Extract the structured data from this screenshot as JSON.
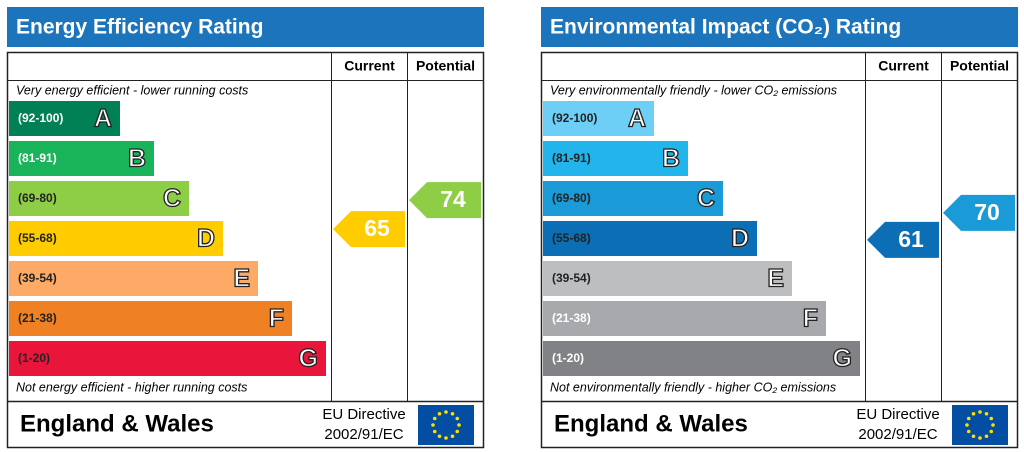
{
  "chart_data": [
    {
      "type": "epc",
      "title": "Energy Efficiency Rating",
      "columns": [
        "Current",
        "Potential"
      ],
      "top_note": "Very energy efficient - lower running costs",
      "bottom_note": "Not energy efficient - higher running costs",
      "bands": [
        {
          "range": "(92-100)",
          "letter": "A",
          "color": "#008054",
          "label_color": "#ffffff"
        },
        {
          "range": "(81-91)",
          "letter": "B",
          "color": "#19b459",
          "label_color": "#ffffff"
        },
        {
          "range": "(69-80)",
          "letter": "C",
          "color": "#8dce46",
          "label_color": "#222222"
        },
        {
          "range": "(55-68)",
          "letter": "D",
          "color": "#ffcc00",
          "label_color": "#222222"
        },
        {
          "range": "(39-54)",
          "letter": "E",
          "color": "#fcaa65",
          "label_color": "#222222"
        },
        {
          "range": "(21-38)",
          "letter": "F",
          "color": "#ef8023",
          "label_color": "#222222"
        },
        {
          "range": "(1-20)",
          "letter": "G",
          "color": "#e9153b",
          "label_color": "#222222"
        }
      ],
      "current": 65,
      "potential": 74,
      "footer": {
        "region": "England & Wales",
        "directive": [
          "EU Directive",
          "2002/91/EC"
        ]
      }
    },
    {
      "type": "epc",
      "title": "Environmental Impact (CO₂) Rating",
      "columns": [
        "Current",
        "Potential"
      ],
      "top_note": "Very environmentally friendly - lower CO₂ emissions",
      "bottom_note": "Not environmentally friendly - higher CO₂ emissions",
      "bands": [
        {
          "range": "(92-100)",
          "letter": "A",
          "color": "#6dcff6",
          "label_color": "#222222"
        },
        {
          "range": "(81-91)",
          "letter": "B",
          "color": "#22b5eb",
          "label_color": "#222222"
        },
        {
          "range": "(69-80)",
          "letter": "C",
          "color": "#1a9bd7",
          "label_color": "#222222"
        },
        {
          "range": "(55-68)",
          "letter": "D",
          "color": "#0c6fb5",
          "label_color": "#222222"
        },
        {
          "range": "(39-54)",
          "letter": "E",
          "color": "#bcbec0",
          "label_color": "#222222"
        },
        {
          "range": "(21-38)",
          "letter": "F",
          "color": "#a7a9ac",
          "label_color": "#ffffff"
        },
        {
          "range": "(1-20)",
          "letter": "G",
          "color": "#808285",
          "label_color": "#ffffff"
        }
      ],
      "current": 61,
      "potential": 70,
      "footer": {
        "region": "England & Wales",
        "directive": [
          "EU Directive",
          "2002/91/EC"
        ]
      }
    }
  ]
}
